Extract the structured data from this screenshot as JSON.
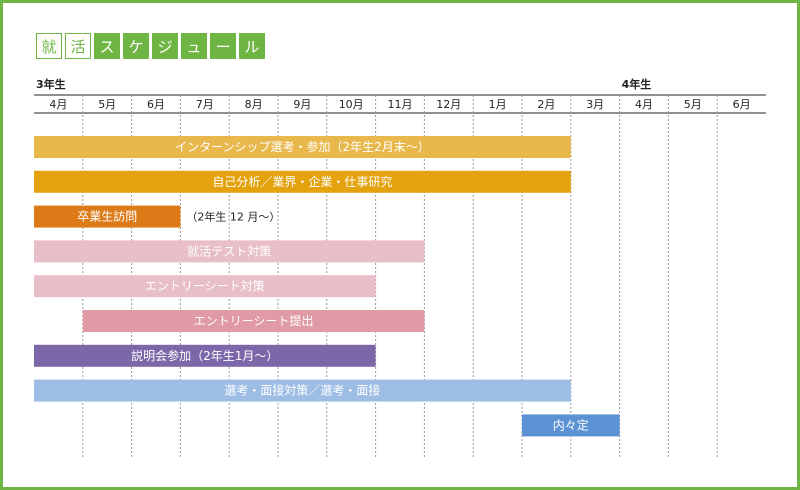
{
  "title_chars": [
    {
      "char": "就",
      "style": "outlined"
    },
    {
      "char": "活",
      "style": "outlined"
    },
    {
      "char": "ス",
      "style": "filled"
    },
    {
      "char": "ケ",
      "style": "filled"
    },
    {
      "char": "ジ",
      "style": "filled"
    },
    {
      "char": "ュ",
      "style": "filled"
    },
    {
      "char": "ー",
      "style": "filled"
    },
    {
      "char": "ル",
      "style": "filled"
    }
  ],
  "colors": {
    "frame": "#6fb543",
    "title_green": "#6fb543",
    "gridline": "#999999"
  },
  "chart_data": {
    "type": "gantt",
    "year_labels": [
      {
        "label": "3年生",
        "month_index": 0
      },
      {
        "label": "4年生",
        "month_index": 12
      }
    ],
    "months": [
      "4月",
      "5月",
      "6月",
      "7月",
      "8月",
      "9月",
      "10月",
      "11月",
      "12月",
      "1月",
      "2月",
      "3月",
      "4月",
      "5月",
      "6月"
    ],
    "tasks": [
      {
        "label": "インターンシップ選考・参加（2年生2月末～）",
        "start": 0,
        "end": 11,
        "color": "#e9b84c",
        "text_color": "#ffffff"
      },
      {
        "label": "自己分析／業界・企業・仕事研究",
        "start": 0,
        "end": 11,
        "color": "#e3a20e",
        "text_color": "#ffffff"
      },
      {
        "label": "卒業生訪問",
        "start": 0,
        "end": 3,
        "color": "#dc7a17",
        "text_color": "#ffffff",
        "note": "（2年生 12 月～）"
      },
      {
        "label": "就活テスト対策",
        "start": 0,
        "end": 8,
        "color": "#e8bfc8",
        "text_color": "#ffffff"
      },
      {
        "label": "エントリーシート対策",
        "start": 0,
        "end": 7,
        "color": "#e8bfc8",
        "text_color": "#ffffff"
      },
      {
        "label": "エントリーシート提出",
        "start": 1,
        "end": 8,
        "color": "#e09aa6",
        "text_color": "#ffffff"
      },
      {
        "label": "説明会参加（2年生1月～）",
        "start": 0,
        "end": 7,
        "color": "#7c68a9",
        "text_color": "#ffffff"
      },
      {
        "label": "選考・面接対策／選考・面接",
        "start": 0,
        "end": 11,
        "color": "#9dbde4",
        "text_color": "#ffffff"
      },
      {
        "label": "内々定",
        "start": 10,
        "end": 12,
        "color": "#5b92d3",
        "text_color": "#ffffff"
      }
    ]
  }
}
